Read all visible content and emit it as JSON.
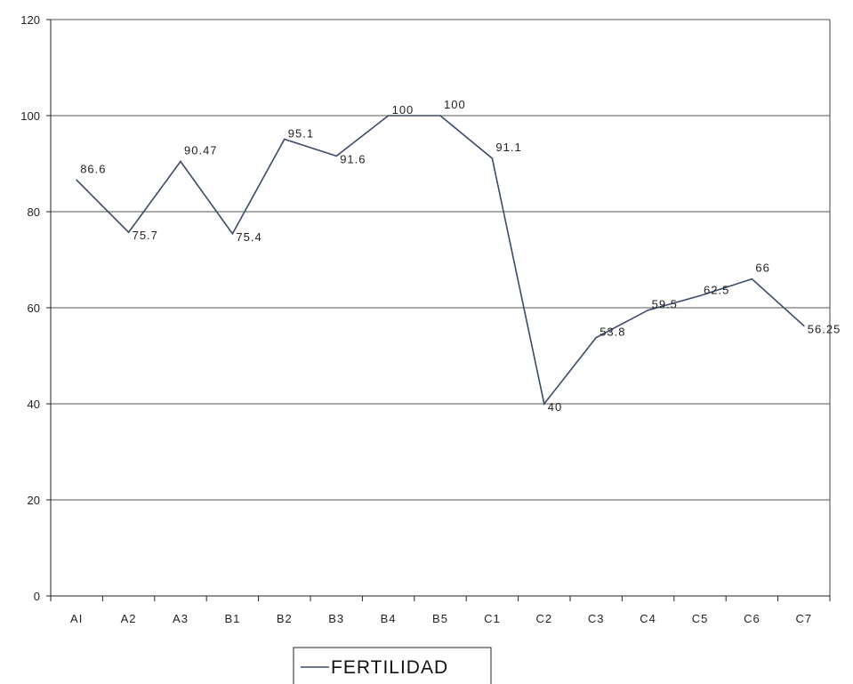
{
  "chart_data": {
    "type": "line",
    "title": "",
    "xlabel": "",
    "ylabel": "",
    "categories": [
      "AI",
      "A2",
      "A3",
      "B1",
      "B2",
      "B3",
      "B4",
      "B5",
      "C1",
      "C2",
      "C3",
      "C4",
      "C5",
      "C6",
      "C7"
    ],
    "series": [
      {
        "name": "FERTILIDAD",
        "values": [
          86.6,
          75.7,
          90.47,
          75.4,
          95.1,
          91.6,
          100,
          100,
          91.1,
          40,
          53.8,
          59.5,
          62.5,
          66,
          56.25
        ],
        "labels": [
          "86.6",
          "75.7",
          "90.47",
          "75.4",
          "95.1",
          "91.6",
          "100",
          "100",
          "91.1",
          "40",
          "53.8",
          "59.5",
          "62.5",
          "66",
          "56.25"
        ],
        "color": "#3a4a6b"
      }
    ],
    "ylim": [
      0,
      120
    ],
    "yticks": [
      0,
      20,
      40,
      60,
      80,
      100,
      120
    ],
    "grid": true,
    "legend": "bottom-center"
  }
}
